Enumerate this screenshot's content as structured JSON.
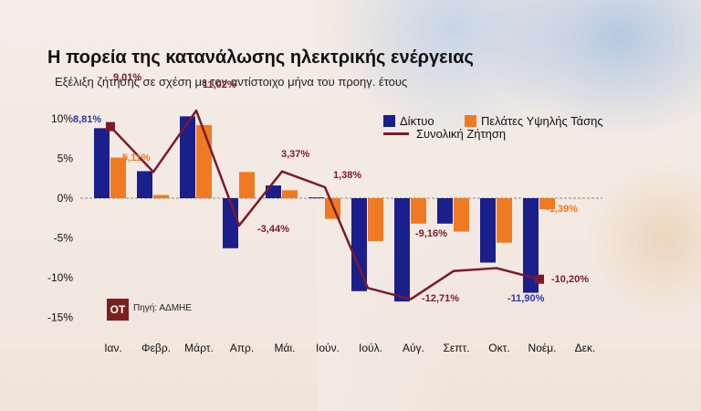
{
  "chart_data": {
    "type": "bar",
    "title": "Η πορεία της κατανάλωσης ηλεκτρικής ενέργειας",
    "subtitle": "Εξέλιξη ζήτησης σε σχέση με τον αντίστοιχο μήνα του προηγ. έτους",
    "categories": [
      "Ιαν.",
      "Φεβρ.",
      "Μάρτ.",
      "Απρ.",
      "Μάι.",
      "Ιούν.",
      "Ιούλ.",
      "Αύγ.",
      "Σεπτ.",
      "Οκτ.",
      "Νοέμ.",
      "Δεκ."
    ],
    "series": [
      {
        "name": "Δίκτυο",
        "type": "bar",
        "color": "#1a1f8c",
        "values": [
          8.81,
          3.4,
          10.3,
          -6.3,
          1.6,
          0.1,
          -11.7,
          -13.0,
          -3.2,
          -8.1,
          -11.9,
          null
        ]
      },
      {
        "name": "Πελάτες Υψηλής Τάσης",
        "type": "bar",
        "color": "#f07a22",
        "values": [
          5.11,
          0.4,
          9.2,
          3.3,
          1.0,
          -2.6,
          -5.4,
          -3.2,
          -4.2,
          -5.6,
          -1.39,
          null
        ]
      },
      {
        "name": "Συνολική Ζήτηση",
        "type": "line",
        "color": "#7b1a2c",
        "values": [
          9.01,
          3.3,
          11.02,
          -3.44,
          3.37,
          1.38,
          -11.3,
          -12.71,
          -9.16,
          -8.8,
          -10.2,
          null
        ]
      }
    ],
    "data_labels": [
      {
        "series": "Δίκτυο",
        "index": 0,
        "text": "8,81%"
      },
      {
        "series": "Πελάτες Υψηλής Τάσης",
        "index": 0,
        "text": "5,11%"
      },
      {
        "series": "Συνολική Ζήτηση",
        "index": 0,
        "text": "9,01%"
      },
      {
        "series": "Συνολική Ζήτηση",
        "index": 2,
        "text": "11,02%"
      },
      {
        "series": "Συνολική Ζήτηση",
        "index": 3,
        "text": "-3,44%"
      },
      {
        "series": "Συνολική Ζήτηση",
        "index": 4,
        "text": "3,37%"
      },
      {
        "series": "Συνολική Ζήτηση",
        "index": 5,
        "text": "1,38%"
      },
      {
        "series": "Συνολική Ζήτηση",
        "index": 7,
        "text": "-12,71%"
      },
      {
        "series": "Συνολική Ζήτηση",
        "index": 8,
        "text": "-9,16%"
      },
      {
        "series": "Δίκτυο",
        "index": 10,
        "text": "-11,90%"
      },
      {
        "series": "Πελάτες Υψηλής Τάσης",
        "index": 10,
        "text": "-1,39%"
      },
      {
        "series": "Συνολική Ζήτηση",
        "index": 10,
        "text": "-10,20%"
      }
    ],
    "y_ticks": [
      10,
      5,
      0,
      -5,
      -10,
      -15
    ],
    "y_tick_labels": [
      "10%",
      "5%",
      "0%",
      "-5%",
      "-10%",
      "-15%"
    ],
    "ylim": [
      -15,
      12
    ],
    "grid": false,
    "legend_position": "top-right"
  },
  "source": {
    "logo": "OT",
    "text": "Πηγή: ΑΔΜΗΕ"
  }
}
